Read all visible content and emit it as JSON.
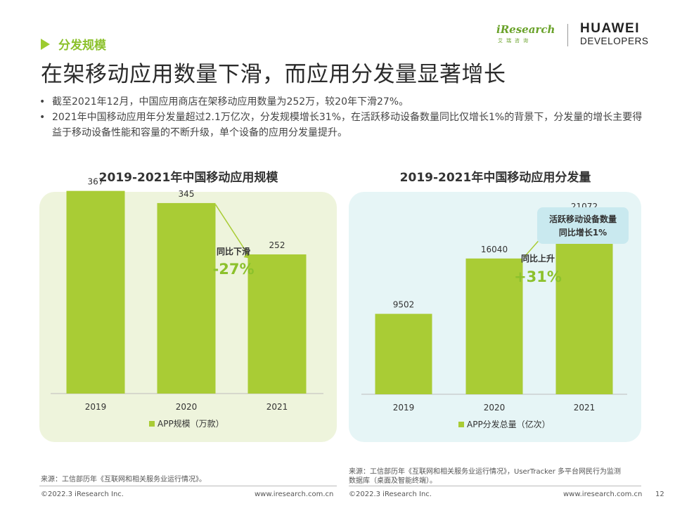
{
  "section": {
    "label": "分发规模"
  },
  "logos": {
    "iresearch": "iResearch",
    "iresearch_sub": "艾瑞咨询",
    "huawei_line1": "HUAWEI",
    "huawei_line2": "DEVELOPERS"
  },
  "title": "在架移动应用数量下滑，而应用分发量显著增长",
  "bullets": [
    "截至2021年12月，中国应用商店在架移动应用数量为252万，较20年下滑27%。",
    "2021年中国移动应用年分发量超过2.1万亿次，分发规模增长31%，在活跃移动设备数量同比仅增长1%的背景下，分发量的增长主要得益于移动设备性能和容量的不断升级，单个设备的应用分发量提升。"
  ],
  "colors": {
    "bar": "#a9cc35",
    "accent": "#8cc12c",
    "panel_left": "#eef4dc",
    "panel_right": "#e6f5f6"
  },
  "chart_data": [
    {
      "type": "bar",
      "title": "2019-2021年中国移动应用规模",
      "categories": [
        "2019",
        "2020",
        "2021"
      ],
      "series": [
        {
          "name": "APP规模（万款）",
          "values": [
            367,
            345,
            252
          ]
        }
      ],
      "legend": "APP规模（万款）",
      "annotation": {
        "label": "同比下滑",
        "value": "-27%"
      },
      "ylim": [
        0,
        420
      ],
      "legend_position": "bottom",
      "grid": false
    },
    {
      "type": "bar",
      "title": "2019-2021年中国移动应用分发量",
      "categories": [
        "2019",
        "2020",
        "2021"
      ],
      "series": [
        {
          "name": "APP分发总量（亿次）",
          "values": [
            9502,
            16040,
            21072
          ]
        }
      ],
      "legend": "APP分发总量（亿次）",
      "annotation": {
        "label": "同比上升",
        "value": "+31%"
      },
      "callout": {
        "line1": "活跃移动设备数量",
        "line2": "同比增长1%"
      },
      "ylim": [
        0,
        27400
      ],
      "legend_position": "bottom",
      "grid": false
    }
  ],
  "footer": {
    "left_source": "来源：工信部历年《互联网和相关服务业运行情况》。",
    "right_source_line1": "来源：工信部历年《互联网和相关服务业运行情况》，UserTracker 多平台网民行为监测",
    "right_source_line2": "数据库（桌面及智能终端）。",
    "copyright_left": "©2022.3 iResearch Inc.",
    "url_left": "www.iresearch.com.cn",
    "copyright_right": "©2022.3 iResearch Inc.",
    "url_right": "www.iresearch.com.cn",
    "page_number": "12"
  }
}
